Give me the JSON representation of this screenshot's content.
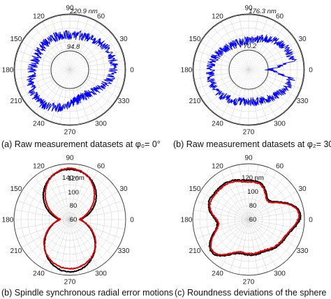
{
  "chart_data": [
    {
      "type": "polar-line",
      "caption": "(a) Raw measurement datasets at φ₀= 0°",
      "angle_ticks": [
        "90",
        "120",
        "150",
        "180",
        "210",
        "240",
        "270",
        "300",
        "330",
        "0",
        "30",
        "60"
      ],
      "radial_labels": [
        "220.9 nm",
        "94.8"
      ],
      "series": [
        {
          "color": "#0000ff",
          "description_values": "noisy radial profile approx 95 to 221 nm",
          "mean_radius": 158,
          "amplitude_range": [
            94.8,
            220.9
          ]
        }
      ]
    },
    {
      "type": "polar-line",
      "caption": "(b) Raw measurement datasets at φ₂= 30°",
      "angle_ticks": [
        "90",
        "120",
        "150",
        "180",
        "210",
        "240",
        "270",
        "300",
        "330",
        "0",
        "30",
        "60"
      ],
      "radial_labels": [
        "176.3 nm",
        "70.2"
      ],
      "series": [
        {
          "color": "#0000ff",
          "amplitude_range": [
            70.2,
            176.3
          ]
        }
      ]
    },
    {
      "type": "polar-line",
      "caption": "(b) Spindle synchronous radial error motions",
      "angle_ticks": [
        "90",
        "120",
        "150",
        "180",
        "210",
        "240",
        "270",
        "300",
        "330",
        "0",
        "30",
        "60"
      ],
      "radial_labels": [
        "140 nm",
        "120",
        "100",
        "80",
        "60"
      ],
      "series": [
        {
          "color": "#000000"
        },
        {
          "color": "#e60000"
        }
      ]
    },
    {
      "type": "polar-line",
      "caption": "(c) Roundness deviations of the sphere",
      "angle_ticks": [
        "90",
        "120",
        "150",
        "180",
        "210",
        "240",
        "270",
        "300",
        "330",
        "0",
        "30",
        "60"
      ],
      "radial_labels": [
        "120 nm",
        "100",
        "80",
        "60"
      ],
      "series": [
        {
          "color": "#000000"
        },
        {
          "color": "#e60000"
        }
      ]
    }
  ]
}
